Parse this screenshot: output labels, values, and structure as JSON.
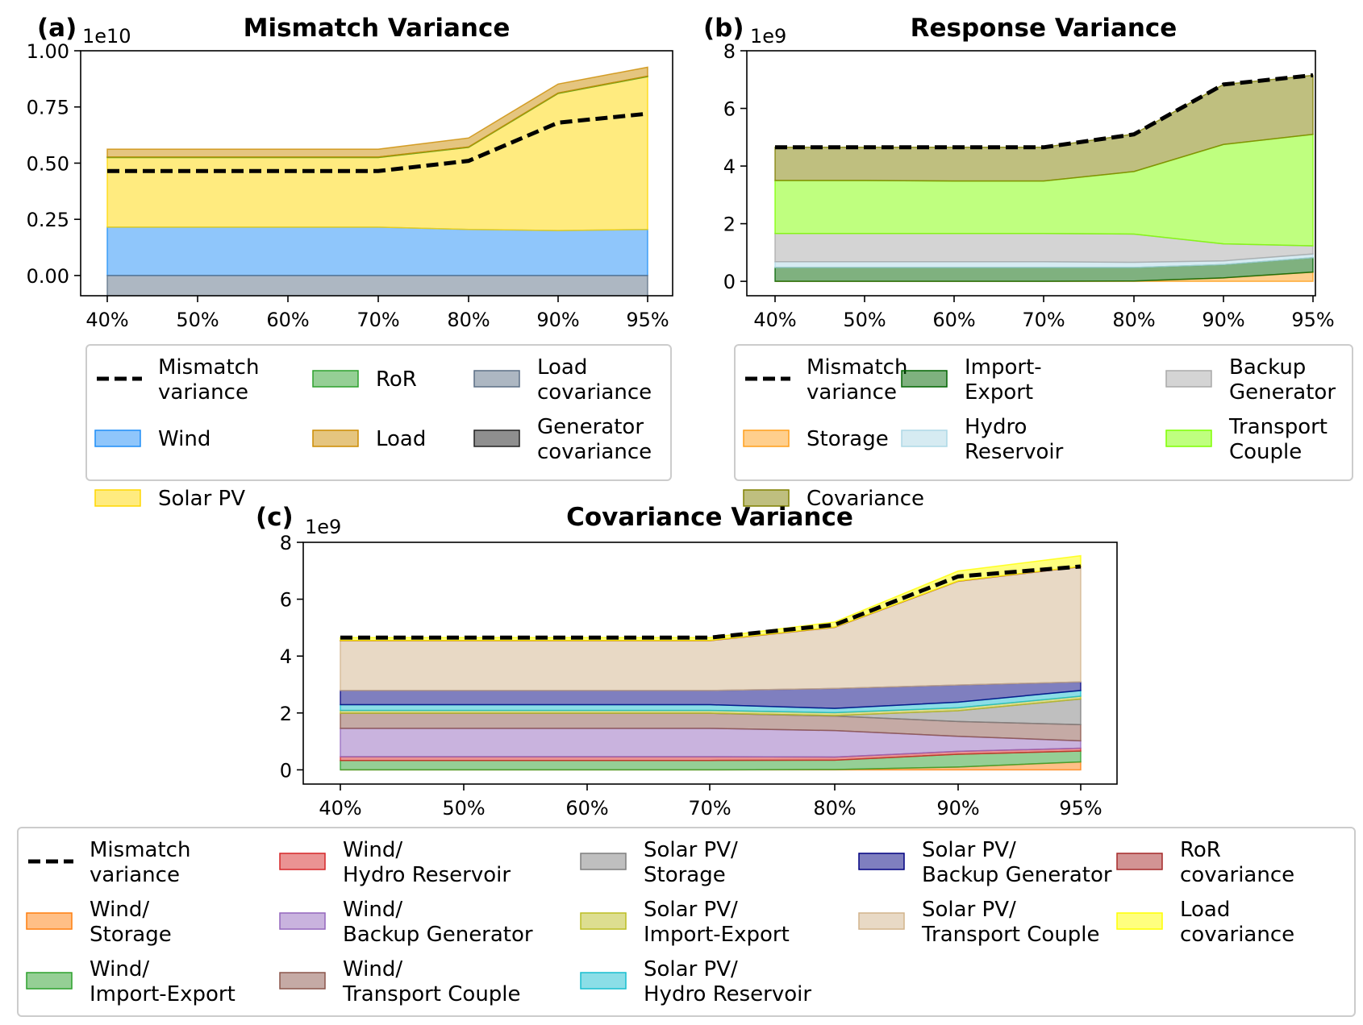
{
  "colors": {
    "mismatch": "#000000",
    "wind": "#1f8ef7",
    "solar_pv": "#ffd700",
    "ror": "#2ca02c",
    "load": "#cc8c00",
    "load_covariance": "#5b6f85",
    "generator_covariance": "#202020",
    "storage": "#ff9f1c",
    "covariance": "#808000",
    "import_export": "#006400",
    "hydro_reservoir": "#add8e6",
    "backup_generator": "#a9a9a9",
    "transport_couple": "#7fff00",
    "wind_storage": "#ff7f0e",
    "wind_import_export": "#2ca02c",
    "wind_hydro": "#d62728",
    "wind_backup": "#9467bd",
    "wind_transport": "#8c564b",
    "solar_storage": "#7f7f7f",
    "solar_import_export": "#bcbd22",
    "solar_hydro": "#17becf",
    "solar_backup": "#000080",
    "solar_transport": "#d2b48c",
    "ror_covariance": "#a52a2a",
    "load_cov_c": "#ffff00"
  },
  "chart_data": [
    {
      "id": "a",
      "panel_label": "(a)",
      "type": "area",
      "title": "Mismatch Variance",
      "exponent_label": "1e10",
      "x": [
        "40%",
        "50%",
        "60%",
        "70%",
        "80%",
        "90%",
        "95%"
      ],
      "ylim": [
        -0.09,
        1.0
      ],
      "yticks": [
        "1.00",
        "0.75",
        "0.50",
        "0.25",
        "0.00"
      ],
      "ytick_values": [
        1.0,
        0.75,
        0.5,
        0.25,
        0.0
      ],
      "series": [
        {
          "name": "Wind",
          "color_key": "wind",
          "values": [
            0.215,
            0.215,
            0.215,
            0.215,
            0.205,
            0.2,
            0.205
          ]
        },
        {
          "name": "Solar PV",
          "color_key": "solar_pv",
          "values": [
            0.31,
            0.31,
            0.31,
            0.31,
            0.365,
            0.61,
            0.68
          ]
        },
        {
          "name": "RoR",
          "color_key": "ror",
          "values": [
            0.002,
            0.002,
            0.002,
            0.002,
            0.002,
            0.002,
            0.002
          ]
        },
        {
          "name": "Load",
          "color_key": "load",
          "values": [
            0.035,
            0.035,
            0.035,
            0.035,
            0.04,
            0.04,
            0.04
          ]
        },
        {
          "name": "Load covariance",
          "color_key": "load_covariance",
          "values": [
            -0.095,
            -0.095,
            -0.095,
            -0.095,
            -0.105,
            -0.15,
            -0.155
          ]
        },
        {
          "name": "Generator covariance",
          "color_key": "generator_covariance",
          "values": [
            -0.01,
            -0.01,
            -0.01,
            -0.01,
            -0.01,
            -0.025,
            -0.05
          ]
        }
      ],
      "line": {
        "name": "Mismatch variance",
        "values": [
          0.465,
          0.465,
          0.465,
          0.465,
          0.51,
          0.68,
          0.72
        ]
      },
      "legend": [
        {
          "label": "Mismatch\nvariance",
          "kind": "line",
          "color_key": "mismatch"
        },
        {
          "label": "Wind",
          "kind": "patch",
          "color_key": "wind"
        },
        {
          "label": "Solar PV",
          "kind": "patch",
          "color_key": "solar_pv"
        },
        {
          "label": "RoR",
          "kind": "patch",
          "color_key": "ror"
        },
        {
          "label": "Load",
          "kind": "patch",
          "color_key": "load"
        },
        {
          "label": "Load\ncovariance",
          "kind": "patch",
          "color_key": "load_covariance"
        },
        {
          "label": "Generator\ncovariance",
          "kind": "patch",
          "color_key": "generator_covariance"
        }
      ]
    },
    {
      "id": "b",
      "panel_label": "(b)",
      "type": "area",
      "title": "Response Variance",
      "exponent_label": "1e9",
      "x": [
        "40%",
        "50%",
        "60%",
        "70%",
        "80%",
        "90%",
        "95%"
      ],
      "ylim": [
        -0.5,
        8
      ],
      "yticks": [
        "8",
        "6",
        "4",
        "2",
        "0"
      ],
      "ytick_values": [
        8,
        6,
        4,
        2,
        0
      ],
      "series": [
        {
          "name": "Storage",
          "color_key": "storage",
          "values": [
            0.0,
            0.0,
            0.0,
            0.0,
            0.01,
            0.12,
            0.32
          ]
        },
        {
          "name": "Import-Export",
          "color_key": "import_export",
          "values": [
            0.48,
            0.48,
            0.48,
            0.48,
            0.47,
            0.46,
            0.5
          ]
        },
        {
          "name": "Hydro Reservoir",
          "color_key": "hydro_reservoir",
          "values": [
            0.2,
            0.2,
            0.2,
            0.2,
            0.18,
            0.13,
            0.13
          ]
        },
        {
          "name": "Backup Generator",
          "color_key": "backup_generator",
          "values": [
            0.98,
            0.98,
            0.98,
            0.98,
            0.98,
            0.59,
            0.28
          ]
        },
        {
          "name": "Transport Couple",
          "color_key": "transport_couple",
          "values": [
            1.84,
            1.84,
            1.82,
            1.82,
            2.17,
            3.45,
            3.87
          ]
        },
        {
          "name": "Covariance",
          "color_key": "covariance",
          "values": [
            1.15,
            1.15,
            1.17,
            1.17,
            1.3,
            2.08,
            2.05
          ]
        }
      ],
      "line": {
        "name": "Mismatch variance",
        "values": [
          4.65,
          4.65,
          4.65,
          4.65,
          5.1,
          6.83,
          7.15
        ]
      },
      "legend": [
        {
          "label": "Mismatch\nvariance",
          "kind": "line",
          "color_key": "mismatch"
        },
        {
          "label": "Storage",
          "kind": "patch",
          "color_key": "storage"
        },
        {
          "label": "Covariance",
          "kind": "patch",
          "color_key": "covariance"
        },
        {
          "label": "Import-\nExport",
          "kind": "patch",
          "color_key": "import_export"
        },
        {
          "label": "Hydro\nReservoir",
          "kind": "patch",
          "color_key": "hydro_reservoir"
        },
        {
          "label": "Backup\nGenerator",
          "kind": "patch",
          "color_key": "backup_generator"
        },
        {
          "label": "Transport\nCouple",
          "kind": "patch",
          "color_key": "transport_couple"
        }
      ]
    },
    {
      "id": "c",
      "panel_label": "(c)",
      "type": "area",
      "title": "Covariance Variance",
      "exponent_label": "1e9",
      "x": [
        "40%",
        "50%",
        "60%",
        "70%",
        "80%",
        "90%",
        "95%"
      ],
      "ylim": [
        -0.5,
        8
      ],
      "yticks": [
        "8",
        "6",
        "4",
        "2",
        "0"
      ],
      "ytick_values": [
        8,
        6,
        4,
        2,
        0
      ],
      "series": [
        {
          "name": "Wind/ Storage",
          "color_key": "wind_storage",
          "values": [
            0.0,
            0.0,
            0.0,
            0.0,
            0.01,
            0.1,
            0.28
          ]
        },
        {
          "name": "Wind/ Import-Export",
          "color_key": "wind_import_export",
          "values": [
            0.33,
            0.33,
            0.33,
            0.33,
            0.33,
            0.45,
            0.38
          ]
        },
        {
          "name": "Wind/ Hydro Reservoir",
          "color_key": "wind_hydro",
          "values": [
            0.13,
            0.13,
            0.13,
            0.13,
            0.11,
            0.1,
            0.1
          ]
        },
        {
          "name": "Wind/ Backup Generator",
          "color_key": "wind_backup",
          "values": [
            1.0,
            1.0,
            1.0,
            1.0,
            0.93,
            0.53,
            0.26
          ]
        },
        {
          "name": "Wind/ Transport Couple",
          "color_key": "wind_transport",
          "values": [
            0.53,
            0.53,
            0.53,
            0.53,
            0.51,
            0.52,
            0.57
          ]
        },
        {
          "name": "Solar PV/ Storage",
          "color_key": "solar_storage",
          "values": [
            0.0,
            0.0,
            0.0,
            0.0,
            0.02,
            0.38,
            0.9
          ]
        },
        {
          "name": "Solar PV/ Import-Export",
          "color_key": "solar_import_export",
          "values": [
            0.1,
            0.1,
            0.1,
            0.1,
            0.1,
            0.1,
            0.1
          ]
        },
        {
          "name": "Solar PV/ Hydro Reservoir",
          "color_key": "solar_hydro",
          "values": [
            0.2,
            0.2,
            0.2,
            0.2,
            0.15,
            0.2,
            0.2
          ]
        },
        {
          "name": "Solar PV/ Backup Generator",
          "color_key": "solar_backup",
          "values": [
            0.5,
            0.5,
            0.5,
            0.5,
            0.7,
            0.6,
            0.3
          ]
        },
        {
          "name": "Solar PV/ Transport Couple",
          "color_key": "solar_transport",
          "values": [
            1.75,
            1.75,
            1.75,
            1.75,
            2.15,
            3.65,
            4.05
          ]
        },
        {
          "name": "RoR covariance",
          "color_key": "ror_covariance",
          "values": [
            0.01,
            0.01,
            0.01,
            0.01,
            0.01,
            0.01,
            0.01
          ]
        },
        {
          "name": "Load covariance",
          "color_key": "load_cov_c",
          "values": [
            0.1,
            0.1,
            0.1,
            0.1,
            0.18,
            0.35,
            0.38
          ]
        }
      ],
      "line": {
        "name": "Mismatch variance",
        "values": [
          4.65,
          4.65,
          4.65,
          4.65,
          5.1,
          6.8,
          7.15
        ]
      },
      "legend": [
        {
          "label": "Mismatch\nvariance",
          "kind": "line",
          "color_key": "mismatch"
        },
        {
          "label": "Wind/\nStorage",
          "kind": "patch",
          "color_key": "wind_storage"
        },
        {
          "label": "Wind/\nImport-Export",
          "kind": "patch",
          "color_key": "wind_import_export"
        },
        {
          "label": "Wind/\nHydro Reservoir",
          "kind": "patch",
          "color_key": "wind_hydro"
        },
        {
          "label": "Wind/\nBackup Generator",
          "kind": "patch",
          "color_key": "wind_backup"
        },
        {
          "label": "Wind/\nTransport Couple",
          "kind": "patch",
          "color_key": "wind_transport"
        },
        {
          "label": "Solar PV/\nStorage",
          "kind": "patch",
          "color_key": "solar_storage"
        },
        {
          "label": "Solar PV/\nImport-Export",
          "kind": "patch",
          "color_key": "solar_import_export"
        },
        {
          "label": "Solar PV/\nHydro Reservoir",
          "kind": "patch",
          "color_key": "solar_hydro"
        },
        {
          "label": "Solar PV/\nBackup Generator",
          "kind": "patch",
          "color_key": "solar_backup"
        },
        {
          "label": "Solar PV/\nTransport Couple",
          "kind": "patch",
          "color_key": "solar_transport"
        },
        {
          "label": "RoR\ncovariance",
          "kind": "patch",
          "color_key": "ror_covariance"
        },
        {
          "label": "Load\ncovariance",
          "kind": "patch",
          "color_key": "load_cov_c"
        }
      ]
    }
  ]
}
